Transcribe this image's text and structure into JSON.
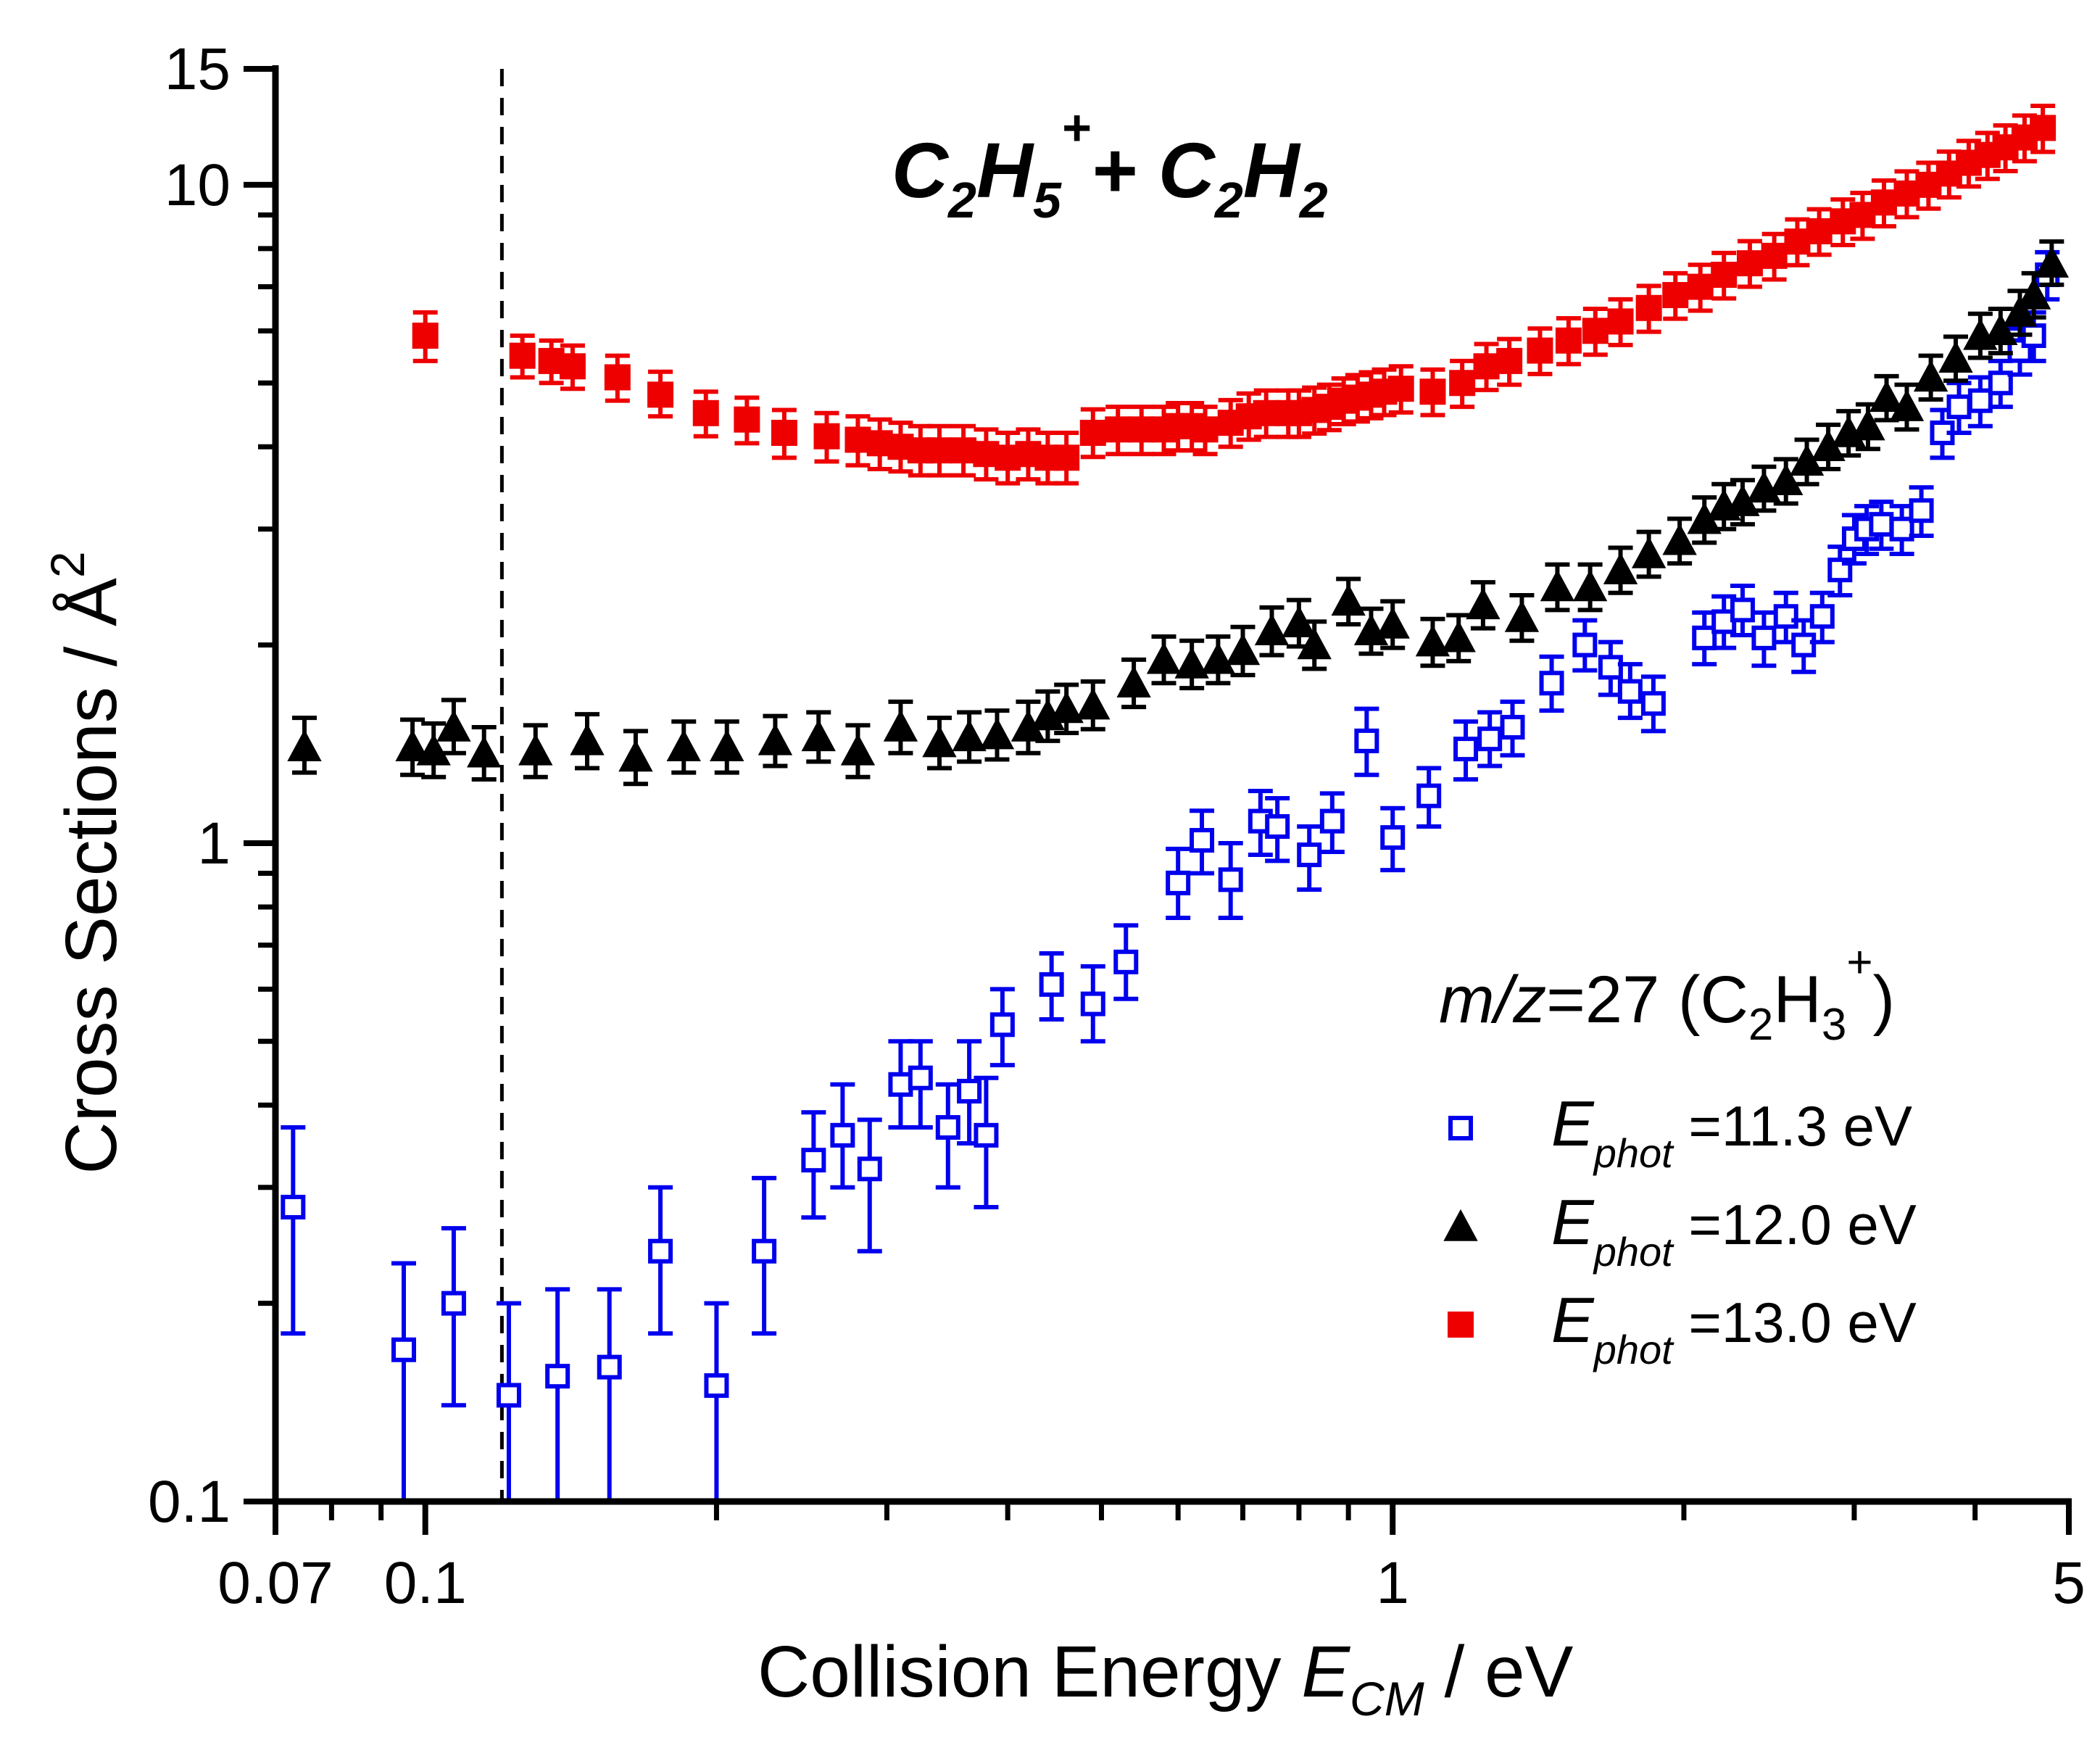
{
  "chart_data": {
    "type": "scatter",
    "title": "C2H5+ + C2H2",
    "title_parts": {
      "base1": "C",
      "sub1": "2",
      "base2": "H",
      "sub2": "5",
      "sup": "+",
      "plus": "+ ",
      "base3": "C",
      "sub3": "2",
      "base4": "H",
      "sub4": "2"
    },
    "xlabel": {
      "prefix": "Collision Energy ",
      "var": "E",
      "sub": "CM",
      "suffix": " / eV"
    },
    "ylabel": {
      "text": "Cross Sections / ",
      "unit": "Å",
      "sup": "2"
    },
    "x_scale": "log",
    "y_scale": "log",
    "xlim": [
      0.07,
      5
    ],
    "ylim": [
      0.1,
      15
    ],
    "xticks_labeled": [
      {
        "value": 0.07,
        "label": "0.07"
      },
      {
        "value": 0.1,
        "label": "0.1"
      },
      {
        "value": 1,
        "label": "1"
      },
      {
        "value": 5,
        "label": "5"
      }
    ],
    "yticks_labeled": [
      {
        "value": 0.1,
        "label": "0.1"
      },
      {
        "value": 1,
        "label": "1"
      },
      {
        "value": 10,
        "label": "10"
      },
      {
        "value": 15,
        "label": "15"
      }
    ],
    "vertical_reference_line": {
      "x": 0.12,
      "style": "dashed"
    },
    "legend": {
      "title": {
        "italic": "m/z",
        "rest": "=27 (C",
        "sub1": "2",
        "mid": "H",
        "sub2": "3",
        "sup": "+",
        "end": ")"
      },
      "placement": "lower-right"
    },
    "series": [
      {
        "name": "E_phot =11.3 eV",
        "legend_var": "E",
        "legend_sub": "phot",
        "legend_value": " =11.3 eV",
        "marker": "open-square",
        "color": "#0000ee",
        "points": [
          [
            0.073,
            0.28,
            0.37,
            0.18
          ],
          [
            0.095,
            0.17,
            0.23,
            0.1
          ],
          [
            0.107,
            0.2,
            0.26,
            0.14
          ],
          [
            0.122,
            0.145,
            0.2,
            0.1
          ],
          [
            0.137,
            0.155,
            0.21,
            0.1
          ],
          [
            0.155,
            0.16,
            0.21,
            0.1
          ],
          [
            0.175,
            0.24,
            0.3,
            0.18
          ],
          [
            0.2,
            0.15,
            0.2,
            0.1
          ],
          [
            0.224,
            0.24,
            0.31,
            0.18
          ],
          [
            0.252,
            0.33,
            0.39,
            0.27
          ],
          [
            0.27,
            0.36,
            0.43,
            0.3
          ],
          [
            0.288,
            0.32,
            0.38,
            0.24
          ],
          [
            0.31,
            0.43,
            0.5,
            0.37
          ],
          [
            0.325,
            0.44,
            0.5,
            0.37
          ],
          [
            0.347,
            0.37,
            0.43,
            0.3
          ],
          [
            0.365,
            0.42,
            0.5,
            0.35
          ],
          [
            0.38,
            0.36,
            0.44,
            0.28
          ],
          [
            0.395,
            0.53,
            0.6,
            0.46
          ],
          [
            0.444,
            0.61,
            0.68,
            0.54
          ],
          [
            0.49,
            0.57,
            0.65,
            0.5
          ],
          [
            0.53,
            0.66,
            0.75,
            0.58
          ],
          [
            0.6,
            0.87,
            0.98,
            0.77
          ],
          [
            0.635,
            1.01,
            1.12,
            0.9
          ],
          [
            0.68,
            0.88,
            1.0,
            0.77
          ],
          [
            0.73,
            1.08,
            1.2,
            0.96
          ],
          [
            0.76,
            1.06,
            1.17,
            0.94
          ],
          [
            0.82,
            0.96,
            1.06,
            0.85
          ],
          [
            0.866,
            1.08,
            1.19,
            0.97
          ],
          [
            0.94,
            1.43,
            1.6,
            1.27
          ],
          [
            1.0,
            1.02,
            1.13,
            0.91
          ],
          [
            1.09,
            1.18,
            1.3,
            1.06
          ],
          [
            1.19,
            1.39,
            1.53,
            1.25
          ],
          [
            1.26,
            1.44,
            1.58,
            1.31
          ],
          [
            1.33,
            1.5,
            1.64,
            1.36
          ],
          [
            1.46,
            1.75,
            1.92,
            1.59
          ],
          [
            1.58,
            2.0,
            2.18,
            1.83
          ],
          [
            1.68,
            1.85,
            2.02,
            1.68
          ],
          [
            1.76,
            1.7,
            1.87,
            1.55
          ],
          [
            1.86,
            1.63,
            1.79,
            1.48
          ],
          [
            2.1,
            2.05,
            2.24,
            1.87
          ],
          [
            2.2,
            2.17,
            2.37,
            1.98
          ],
          [
            2.3,
            2.26,
            2.46,
            2.07
          ],
          [
            2.42,
            2.05,
            2.24,
            1.86
          ],
          [
            2.55,
            2.21,
            2.4,
            2.02
          ],
          [
            2.66,
            2.0,
            2.18,
            1.82
          ],
          [
            2.78,
            2.21,
            2.4,
            2.02
          ],
          [
            2.9,
            2.6,
            2.82,
            2.38
          ],
          [
            3.0,
            2.9,
            3.15,
            2.66
          ],
          [
            3.09,
            3.0,
            3.25,
            2.75
          ],
          [
            3.2,
            3.05,
            3.3,
            2.8
          ],
          [
            3.36,
            3.0,
            3.25,
            2.75
          ],
          [
            3.52,
            3.2,
            3.47,
            2.93
          ],
          [
            3.7,
            4.2,
            4.55,
            3.85
          ],
          [
            3.85,
            4.6,
            5.0,
            4.2
          ],
          [
            4.05,
            4.7,
            5.1,
            4.3
          ],
          [
            4.25,
            5.0,
            5.4,
            4.6
          ],
          [
            4.45,
            5.6,
            6.05,
            5.15
          ],
          [
            4.6,
            5.9,
            6.4,
            5.4
          ],
          [
            4.75,
            7.3,
            7.9,
            6.7
          ]
        ]
      },
      {
        "name": "E_phot =12.0 eV",
        "legend_var": "E",
        "legend_sub": "phot",
        "legend_value": " =12.0 eV",
        "marker": "filled-triangle",
        "color": "#000000",
        "points": [
          [
            0.075,
            1.4,
            1.55,
            1.28
          ],
          [
            0.097,
            1.4,
            1.54,
            1.27
          ],
          [
            0.102,
            1.38,
            1.52,
            1.26
          ],
          [
            0.107,
            1.5,
            1.65,
            1.37
          ],
          [
            0.115,
            1.37,
            1.5,
            1.25
          ],
          [
            0.13,
            1.38,
            1.51,
            1.26
          ],
          [
            0.147,
            1.43,
            1.57,
            1.3
          ],
          [
            0.165,
            1.35,
            1.48,
            1.23
          ],
          [
            0.185,
            1.4,
            1.53,
            1.28
          ],
          [
            0.205,
            1.4,
            1.53,
            1.28
          ],
          [
            0.23,
            1.43,
            1.56,
            1.31
          ],
          [
            0.255,
            1.45,
            1.58,
            1.33
          ],
          [
            0.28,
            1.38,
            1.51,
            1.26
          ],
          [
            0.31,
            1.5,
            1.64,
            1.37
          ],
          [
            0.34,
            1.42,
            1.55,
            1.3
          ],
          [
            0.365,
            1.45,
            1.58,
            1.33
          ],
          [
            0.39,
            1.46,
            1.59,
            1.34
          ],
          [
            0.42,
            1.5,
            1.64,
            1.37
          ],
          [
            0.44,
            1.56,
            1.7,
            1.43
          ],
          [
            0.46,
            1.6,
            1.74,
            1.47
          ],
          [
            0.49,
            1.62,
            1.76,
            1.49
          ],
          [
            0.54,
            1.75,
            1.9,
            1.61
          ],
          [
            0.58,
            1.9,
            2.06,
            1.75
          ],
          [
            0.62,
            1.87,
            2.03,
            1.72
          ],
          [
            0.66,
            1.9,
            2.06,
            1.75
          ],
          [
            0.7,
            1.96,
            2.13,
            1.8
          ],
          [
            0.75,
            2.1,
            2.28,
            1.93
          ],
          [
            0.8,
            2.16,
            2.34,
            1.99
          ],
          [
            0.83,
            2.0,
            2.17,
            1.84
          ],
          [
            0.9,
            2.33,
            2.52,
            2.15
          ],
          [
            0.95,
            2.1,
            2.27,
            1.94
          ],
          [
            1.0,
            2.15,
            2.33,
            1.98
          ],
          [
            1.1,
            2.02,
            2.19,
            1.86
          ],
          [
            1.17,
            2.05,
            2.22,
            1.89
          ],
          [
            1.24,
            2.3,
            2.49,
            2.12
          ],
          [
            1.36,
            2.2,
            2.38,
            2.03
          ],
          [
            1.48,
            2.45,
            2.65,
            2.26
          ],
          [
            1.6,
            2.45,
            2.65,
            2.26
          ],
          [
            1.72,
            2.6,
            2.81,
            2.4
          ],
          [
            1.84,
            2.75,
            2.97,
            2.54
          ],
          [
            1.98,
            2.88,
            3.11,
            2.66
          ],
          [
            2.1,
            3.1,
            3.35,
            2.86
          ],
          [
            2.2,
            3.25,
            3.51,
            3.0
          ],
          [
            2.3,
            3.3,
            3.56,
            3.05
          ],
          [
            2.42,
            3.46,
            3.73,
            3.2
          ],
          [
            2.55,
            3.55,
            3.83,
            3.28
          ],
          [
            2.68,
            3.8,
            4.1,
            3.51
          ],
          [
            2.82,
            4.0,
            4.32,
            3.7
          ],
          [
            2.96,
            4.2,
            4.53,
            3.88
          ],
          [
            3.1,
            4.3,
            4.64,
            3.97
          ],
          [
            3.24,
            4.75,
            5.12,
            4.39
          ],
          [
            3.4,
            4.6,
            4.97,
            4.25
          ],
          [
            3.6,
            5.1,
            5.5,
            4.72
          ],
          [
            3.82,
            5.45,
            5.88,
            5.04
          ],
          [
            4.05,
            5.9,
            6.37,
            5.46
          ],
          [
            4.25,
            6.0,
            6.48,
            5.55
          ],
          [
            4.45,
            6.4,
            6.9,
            5.92
          ],
          [
            4.6,
            6.8,
            7.34,
            6.29
          ],
          [
            4.8,
            7.6,
            8.2,
            7.05
          ]
        ]
      },
      {
        "name": "E_phot =13.0 eV",
        "legend_var": "E",
        "legend_sub": "phot",
        "legend_value": " =13.0 eV",
        "marker": "filled-square",
        "color": "#ee0000",
        "points": [
          [
            0.1,
            5.9,
            6.4,
            5.4
          ],
          [
            0.126,
            5.5,
            5.9,
            5.1
          ],
          [
            0.135,
            5.4,
            5.8,
            5.0
          ],
          [
            0.142,
            5.3,
            5.7,
            4.9
          ],
          [
            0.158,
            5.1,
            5.5,
            4.7
          ],
          [
            0.175,
            4.8,
            5.2,
            4.45
          ],
          [
            0.195,
            4.5,
            4.85,
            4.15
          ],
          [
            0.215,
            4.4,
            4.75,
            4.05
          ],
          [
            0.235,
            4.2,
            4.55,
            3.85
          ],
          [
            0.26,
            4.15,
            4.5,
            3.8
          ],
          [
            0.28,
            4.1,
            4.45,
            3.75
          ],
          [
            0.295,
            4.05,
            4.4,
            3.7
          ],
          [
            0.31,
            4.0,
            4.35,
            3.67
          ],
          [
            0.325,
            3.95,
            4.3,
            3.62
          ],
          [
            0.34,
            3.95,
            4.3,
            3.62
          ],
          [
            0.36,
            3.95,
            4.3,
            3.62
          ],
          [
            0.38,
            3.9,
            4.25,
            3.57
          ],
          [
            0.4,
            3.85,
            4.2,
            3.52
          ],
          [
            0.42,
            3.9,
            4.25,
            3.57
          ],
          [
            0.44,
            3.85,
            4.2,
            3.52
          ],
          [
            0.46,
            3.85,
            4.2,
            3.52
          ],
          [
            0.49,
            4.2,
            4.56,
            3.86
          ],
          [
            0.52,
            4.25,
            4.6,
            3.9
          ],
          [
            0.55,
            4.25,
            4.6,
            3.9
          ],
          [
            0.58,
            4.25,
            4.6,
            3.9
          ],
          [
            0.6,
            4.3,
            4.66,
            3.95
          ],
          [
            0.62,
            4.3,
            4.66,
            3.95
          ],
          [
            0.64,
            4.25,
            4.6,
            3.9
          ],
          [
            0.68,
            4.35,
            4.71,
            4.0
          ],
          [
            0.71,
            4.45,
            4.82,
            4.1
          ],
          [
            0.74,
            4.5,
            4.87,
            4.14
          ],
          [
            0.78,
            4.5,
            4.87,
            4.14
          ],
          [
            0.8,
            4.5,
            4.87,
            4.14
          ],
          [
            0.83,
            4.55,
            4.92,
            4.19
          ],
          [
            0.86,
            4.6,
            4.97,
            4.24
          ],
          [
            0.89,
            4.7,
            5.08,
            4.33
          ],
          [
            0.92,
            4.75,
            5.14,
            4.37
          ],
          [
            0.95,
            4.8,
            5.19,
            4.42
          ],
          [
            0.98,
            4.85,
            5.24,
            4.47
          ],
          [
            1.02,
            4.9,
            5.3,
            4.51
          ],
          [
            1.1,
            4.85,
            5.24,
            4.47
          ],
          [
            1.18,
            5.0,
            5.4,
            4.6
          ],
          [
            1.25,
            5.3,
            5.73,
            4.88
          ],
          [
            1.32,
            5.4,
            5.83,
            4.97
          ],
          [
            1.42,
            5.6,
            6.05,
            5.16
          ],
          [
            1.52,
            5.8,
            6.27,
            5.34
          ],
          [
            1.62,
            6.0,
            6.48,
            5.52
          ],
          [
            1.72,
            6.2,
            6.7,
            5.71
          ],
          [
            1.84,
            6.5,
            7.02,
            5.98
          ],
          [
            1.96,
            6.8,
            7.34,
            6.26
          ],
          [
            2.08,
            7.0,
            7.56,
            6.44
          ],
          [
            2.2,
            7.3,
            7.88,
            6.72
          ],
          [
            2.34,
            7.6,
            8.21,
            7.0
          ],
          [
            2.48,
            7.8,
            8.42,
            7.18
          ],
          [
            2.62,
            8.2,
            8.86,
            7.55
          ],
          [
            2.76,
            8.5,
            9.18,
            7.83
          ],
          [
            2.92,
            8.8,
            9.5,
            8.1
          ],
          [
            3.06,
            9.0,
            9.72,
            8.28
          ],
          [
            3.22,
            9.4,
            10.15,
            8.65
          ],
          [
            3.4,
            9.7,
            10.48,
            8.93
          ],
          [
            3.58,
            10.0,
            10.8,
            9.2
          ],
          [
            3.76,
            10.4,
            11.23,
            9.57
          ],
          [
            3.94,
            10.8,
            11.66,
            9.94
          ],
          [
            4.12,
            11.1,
            11.99,
            10.21
          ],
          [
            4.3,
            11.4,
            12.31,
            10.49
          ],
          [
            4.5,
            11.8,
            12.74,
            10.86
          ],
          [
            4.7,
            12.2,
            13.18,
            11.22
          ]
        ]
      }
    ]
  }
}
